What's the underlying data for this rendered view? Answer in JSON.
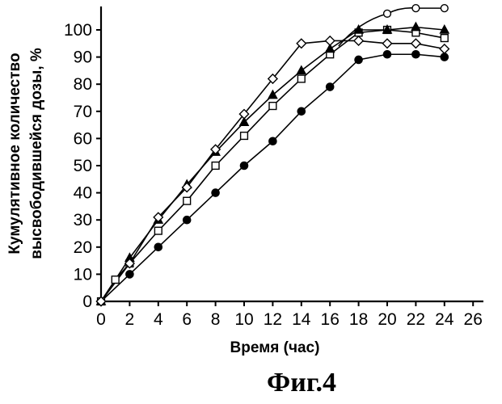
{
  "chart_data": {
    "type": "line",
    "title": "",
    "xlabel": "Время (час)",
    "ylabel_line1": "Кумулятивное количество",
    "ylabel_line2": "высвободившейся дозы, %",
    "figure_label": "Фиг.4",
    "xlim": [
      0,
      26
    ],
    "ylim": [
      0,
      100
    ],
    "x_ticks": [
      "0",
      "2",
      "4",
      "6",
      "8",
      "10",
      "12",
      "14",
      "16",
      "18",
      "20",
      "22",
      "24",
      "26"
    ],
    "y_ticks": [
      "0",
      "10",
      "20",
      "30",
      "40",
      "50",
      "60",
      "70",
      "80",
      "90",
      "100"
    ],
    "grid": false,
    "series": [
      {
        "marker": "filled-circle",
        "x": [
          0,
          2,
          4,
          6,
          8,
          10,
          12,
          14,
          16,
          18,
          20,
          22,
          24
        ],
        "y": [
          0,
          10,
          20,
          30,
          40,
          50,
          59,
          70,
          79,
          89,
          91,
          91,
          90
        ]
      },
      {
        "marker": "open-square",
        "x": [
          0,
          1,
          2,
          4,
          6,
          8,
          10,
          12,
          14,
          16,
          18,
          20,
          22,
          24
        ],
        "y": [
          0,
          8,
          14,
          26,
          37,
          50,
          61,
          72,
          82,
          91,
          99,
          100,
          99,
          97
        ]
      },
      {
        "marker": "filled-triangle",
        "x": [
          0,
          2,
          4,
          6,
          8,
          10,
          12,
          14,
          16,
          18,
          20,
          22,
          24
        ],
        "y": [
          0,
          16,
          30,
          43,
          55,
          66,
          76,
          85,
          93,
          100,
          100,
          101,
          100
        ]
      },
      {
        "marker": "open-diamond",
        "x": [
          0,
          2,
          4,
          6,
          8,
          10,
          12,
          14,
          16,
          18,
          20,
          22,
          24
        ],
        "y": [
          0,
          14,
          31,
          42,
          56,
          69,
          82,
          95,
          96,
          96,
          95,
          95,
          93
        ]
      },
      {
        "marker": "open-circle",
        "x": [
          20,
          22,
          24
        ],
        "y": [
          106,
          108,
          108
        ]
      }
    ]
  }
}
